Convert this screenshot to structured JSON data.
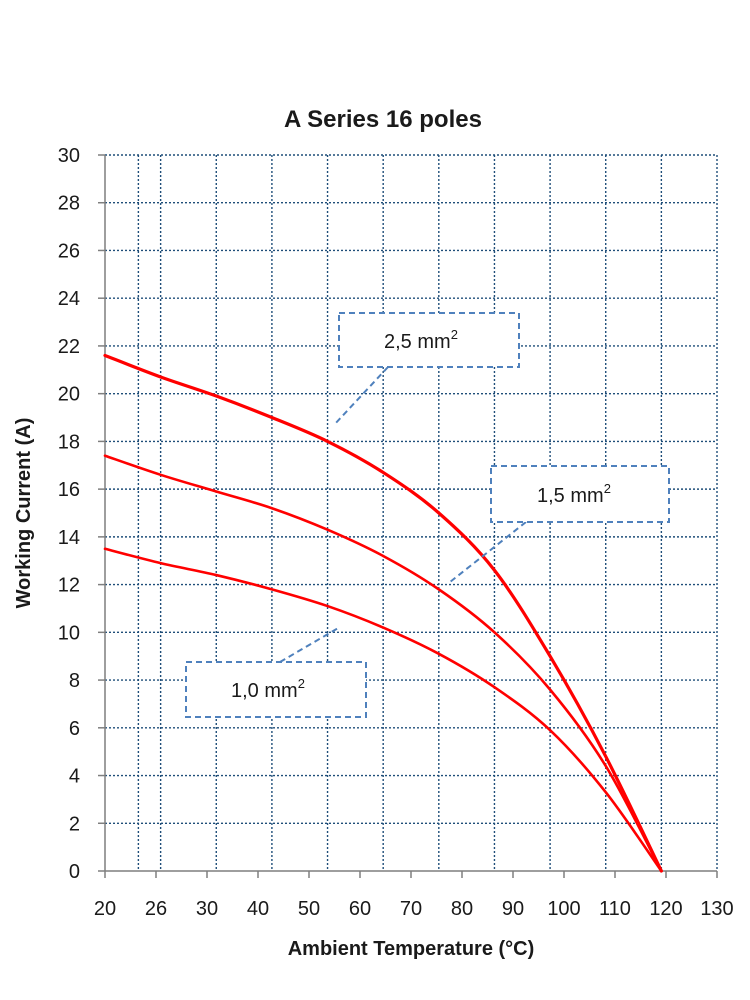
{
  "chart_data": {
    "type": "line",
    "title": "A Series 16 poles",
    "xlabel": "Ambient Temperature (°C)",
    "ylabel": "Working Current (A)",
    "xlim": [
      20,
      130
    ],
    "ylim": [
      0,
      30
    ],
    "x_ticks": [
      "20",
      "26",
      "30",
      "40",
      "50",
      "60",
      "70",
      "80",
      "90",
      "100",
      "110",
      "120",
      "130"
    ],
    "y_ticks": [
      "0",
      "2",
      "4",
      "6",
      "8",
      "10",
      "12",
      "14",
      "16",
      "18",
      "20",
      "22",
      "24",
      "26",
      "28",
      "30"
    ],
    "grid": true,
    "colors": {
      "series": "#ff0000",
      "grid": "#1f4e79",
      "callout": "#4f81bd"
    },
    "series": [
      {
        "name": "2,5 mm",
        "superscript": "2",
        "points": [
          [
            20,
            21.6
          ],
          [
            30,
            20.7
          ],
          [
            40,
            19.9
          ],
          [
            50,
            19.0
          ],
          [
            60,
            18.0
          ],
          [
            70,
            16.7
          ],
          [
            80,
            15.0
          ],
          [
            90,
            12.6
          ],
          [
            100,
            9.0
          ],
          [
            110,
            4.8
          ],
          [
            120,
            0
          ]
        ]
      },
      {
        "name": "1,5 mm",
        "superscript": "2",
        "points": [
          [
            20,
            17.4
          ],
          [
            30,
            16.6
          ],
          [
            40,
            15.9
          ],
          [
            50,
            15.2
          ],
          [
            60,
            14.3
          ],
          [
            70,
            13.2
          ],
          [
            80,
            11.8
          ],
          [
            90,
            10.0
          ],
          [
            100,
            7.6
          ],
          [
            110,
            4.4
          ],
          [
            120,
            0
          ]
        ]
      },
      {
        "name": "1,0 mm",
        "superscript": "2",
        "points": [
          [
            20,
            13.5
          ],
          [
            30,
            12.9
          ],
          [
            40,
            12.4
          ],
          [
            50,
            11.8
          ],
          [
            60,
            11.1
          ],
          [
            70,
            10.2
          ],
          [
            80,
            9.1
          ],
          [
            90,
            7.7
          ],
          [
            100,
            5.9
          ],
          [
            110,
            3.3
          ],
          [
            120,
            0
          ]
        ]
      }
    ]
  }
}
